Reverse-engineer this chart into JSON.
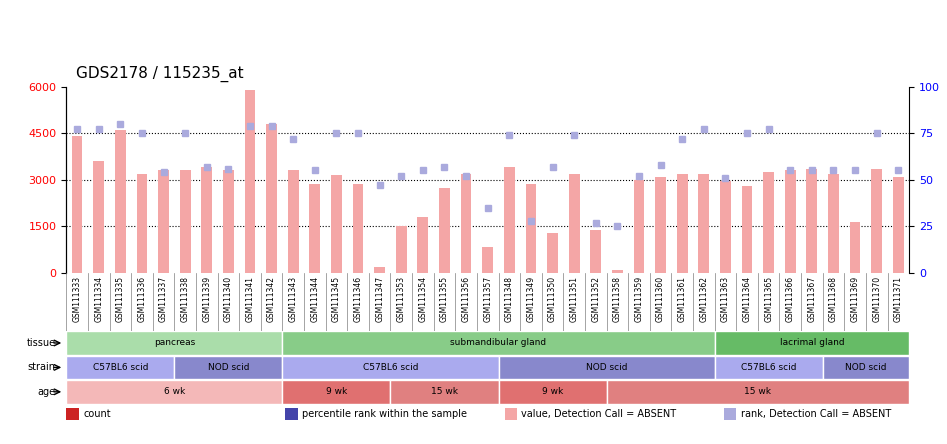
{
  "title": "GDS2178 / 115235_at",
  "samples": [
    "GSM111333",
    "GSM111334",
    "GSM111335",
    "GSM111336",
    "GSM111337",
    "GSM111338",
    "GSM111339",
    "GSM111340",
    "GSM111341",
    "GSM111342",
    "GSM111343",
    "GSM111344",
    "GSM111345",
    "GSM111346",
    "GSM111347",
    "GSM111353",
    "GSM111354",
    "GSM111355",
    "GSM111356",
    "GSM111357",
    "GSM111348",
    "GSM111349",
    "GSM111350",
    "GSM111351",
    "GSM111352",
    "GSM111358",
    "GSM111359",
    "GSM111360",
    "GSM111361",
    "GSM111362",
    "GSM111363",
    "GSM111364",
    "GSM111365",
    "GSM111366",
    "GSM111367",
    "GSM111368",
    "GSM111369",
    "GSM111370",
    "GSM111371"
  ],
  "bar_values": [
    4400,
    3600,
    4600,
    3200,
    3300,
    3300,
    3400,
    3300,
    5900,
    4800,
    3300,
    2850,
    3150,
    2850,
    200,
    1500,
    1800,
    2750,
    3200,
    850,
    3400,
    2850,
    1300,
    3200,
    1400,
    100,
    3000,
    3100,
    3200,
    3200,
    2950,
    2800,
    3250,
    3300,
    3350,
    3200,
    1650,
    3350,
    3100
  ],
  "rank_values": [
    77,
    77,
    80,
    75,
    54,
    75,
    57,
    56,
    79,
    79,
    72,
    55,
    75,
    75,
    47,
    52,
    55,
    57,
    52,
    35,
    74,
    28,
    57,
    74,
    27,
    25,
    52,
    58,
    72,
    77,
    51,
    75,
    77,
    55,
    55,
    55,
    55,
    75,
    55
  ],
  "bar_color_present": "#f4a6a6",
  "bar_color_absent": "#f4a6a6",
  "rank_color_present": "#8888cc",
  "rank_color_absent": "#aaaadd",
  "ylim_left": [
    0,
    6000
  ],
  "ylim_right": [
    0,
    100
  ],
  "yticks_left": [
    0,
    1500,
    3000,
    4500,
    6000
  ],
  "yticks_right": [
    0,
    25,
    50,
    75,
    100
  ],
  "tissue_groups": [
    {
      "label": "pancreas",
      "start": 0,
      "end": 10,
      "color": "#aaddaa"
    },
    {
      "label": "submandibular gland",
      "start": 10,
      "end": 30,
      "color": "#88cc88"
    },
    {
      "label": "lacrimal gland",
      "start": 30,
      "end": 39,
      "color": "#66bb66"
    }
  ],
  "strain_groups": [
    {
      "label": "C57BL6 scid",
      "start": 0,
      "end": 5,
      "color": "#aaaaee"
    },
    {
      "label": "NOD scid",
      "start": 5,
      "end": 10,
      "color": "#8888cc"
    },
    {
      "label": "C57BL6 scid",
      "start": 10,
      "end": 20,
      "color": "#aaaaee"
    },
    {
      "label": "NOD scid",
      "start": 20,
      "end": 30,
      "color": "#8888cc"
    },
    {
      "label": "C57BL6 scid",
      "start": 30,
      "end": 35,
      "color": "#aaaaee"
    },
    {
      "label": "NOD scid",
      "start": 35,
      "end": 39,
      "color": "#8888cc"
    }
  ],
  "age_groups": [
    {
      "label": "6 wk",
      "start": 0,
      "end": 10,
      "color": "#f4b8b8"
    },
    {
      "label": "9 wk",
      "start": 10,
      "end": 15,
      "color": "#e07070"
    },
    {
      "label": "15 wk",
      "start": 15,
      "end": 20,
      "color": "#e08080"
    },
    {
      "label": "9 wk",
      "start": 20,
      "end": 25,
      "color": "#e07070"
    },
    {
      "label": "15 wk",
      "start": 25,
      "end": 39,
      "color": "#e08080"
    }
  ],
  "legend_items": [
    {
      "label": "count",
      "color": "#cc2222",
      "marker": "s"
    },
    {
      "label": "percentile rank within the sample",
      "color": "#4444aa",
      "marker": "s"
    },
    {
      "label": "value, Detection Call = ABSENT",
      "color": "#f4a6a6",
      "marker": "s"
    },
    {
      "label": "rank, Detection Call = ABSENT",
      "color": "#aaaadd",
      "marker": "s"
    }
  ]
}
